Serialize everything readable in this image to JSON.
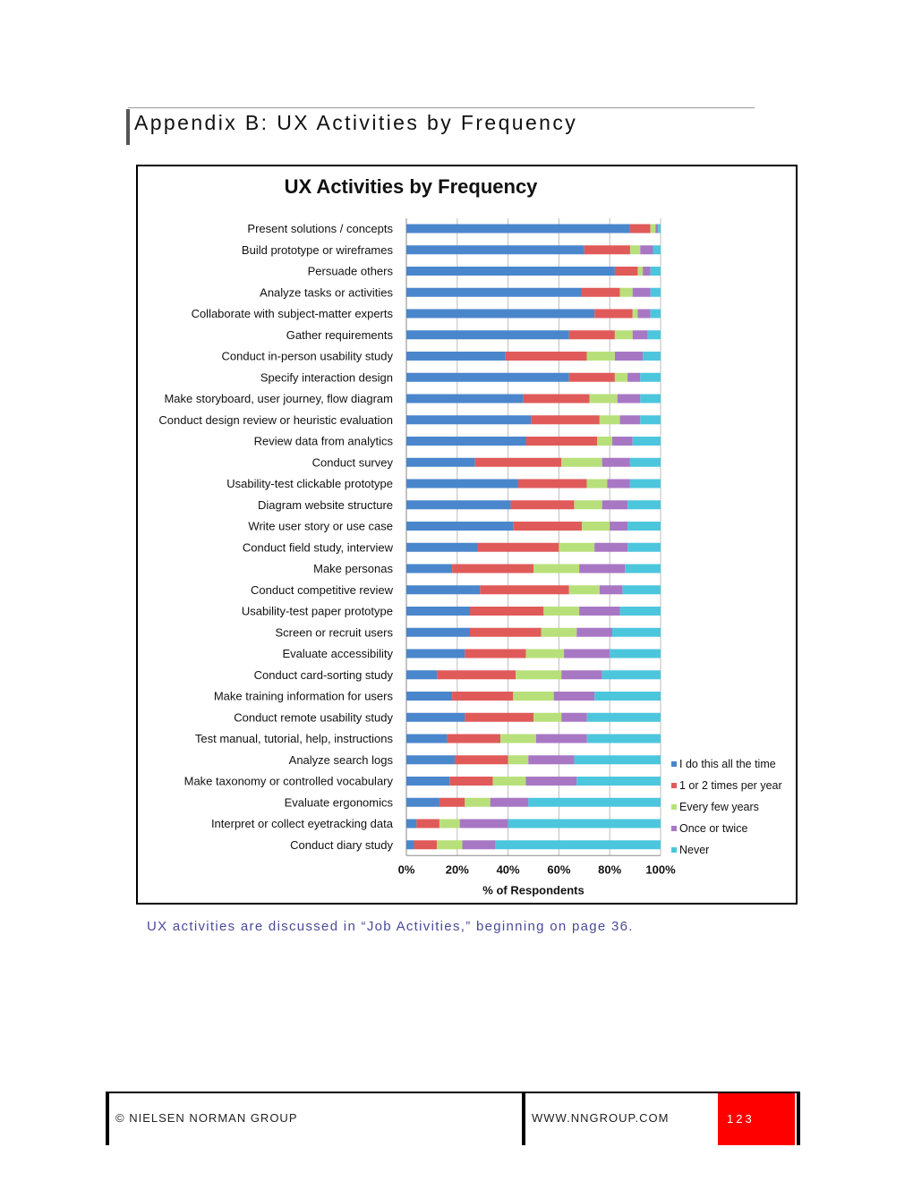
{
  "page": {
    "heading": "Appendix B: UX Activities by Frequency",
    "caption": "UX activities are discussed in “Job Activities,” beginning on page 36.",
    "footer": {
      "copyright": "© NIELSEN NORMAN GROUP",
      "url": "WWW.NNGROUP.COM",
      "page_number": "123"
    }
  },
  "chart_data": {
    "type": "bar",
    "orientation": "horizontal",
    "stacked": true,
    "title": "UX Activities by Frequency",
    "xlabel": "% of Respondents",
    "ylabel": "",
    "xlim": [
      0,
      100
    ],
    "ticks": [
      "0%",
      "20%",
      "40%",
      "60%",
      "80%",
      "100%"
    ],
    "grid": true,
    "legend_position": "right",
    "colors": [
      "#4a86cc",
      "#e05a5a",
      "#b8e07a",
      "#a877c4",
      "#4cc6dc"
    ],
    "categories": [
      "Present solutions / concepts",
      "Build prototype or wireframes",
      "Persuade others",
      "Analyze tasks or activities",
      "Collaborate with subject-matter experts",
      "Gather requirements",
      "Conduct in-person usability study",
      "Specify interaction design",
      "Make storyboard, user journey, flow diagram",
      "Conduct design review or heuristic evaluation",
      "Review data from analytics",
      "Conduct survey",
      "Usability-test clickable prototype",
      "Diagram website structure",
      "Write user story or use case",
      "Conduct field study, interview",
      "Make personas",
      "Conduct competitive review",
      "Usability-test paper prototype",
      "Screen or recruit users",
      "Evaluate accessibility",
      "Conduct card-sorting study",
      "Make training information for users",
      "Conduct remote usability study",
      "Test manual, tutorial, help, instructions",
      "Analyze search logs",
      "Make taxonomy or controlled vocabulary",
      "Evaluate ergonomics",
      "Interpret or collect eyetracking data",
      "Conduct diary study"
    ],
    "series": [
      {
        "name": "I do this all the time",
        "values": [
          88,
          70,
          82,
          69,
          74,
          64,
          39,
          64,
          46,
          49,
          47,
          27,
          44,
          41,
          42,
          28,
          18,
          29,
          25,
          25,
          23,
          12,
          18,
          23,
          16,
          19,
          17,
          13,
          4,
          3
        ]
      },
      {
        "name": "1 or 2 times per year",
        "values": [
          8,
          18,
          9,
          15,
          15,
          18,
          32,
          18,
          26,
          27,
          28,
          34,
          27,
          25,
          27,
          32,
          32,
          35,
          29,
          28,
          24,
          31,
          24,
          27,
          21,
          21,
          17,
          10,
          9,
          9
        ]
      },
      {
        "name": "Every few years",
        "values": [
          2,
          4,
          2,
          5,
          2,
          7,
          11,
          5,
          11,
          8,
          6,
          16,
          8,
          11,
          11,
          14,
          18,
          12,
          14,
          14,
          15,
          18,
          16,
          11,
          14,
          8,
          13,
          10,
          8,
          10
        ]
      },
      {
        "name": "Once or twice",
        "values": [
          1,
          5,
          3,
          7,
          5,
          6,
          11,
          5,
          9,
          8,
          8,
          11,
          9,
          10,
          7,
          13,
          18,
          9,
          16,
          14,
          18,
          16,
          16,
          10,
          20,
          18,
          20,
          15,
          19,
          13
        ]
      },
      {
        "name": "Never",
        "values": [
          1,
          3,
          4,
          4,
          4,
          5,
          7,
          8,
          8,
          8,
          11,
          12,
          12,
          13,
          13,
          13,
          14,
          15,
          16,
          19,
          20,
          23,
          26,
          29,
          29,
          34,
          33,
          52,
          60,
          65
        ]
      }
    ]
  }
}
